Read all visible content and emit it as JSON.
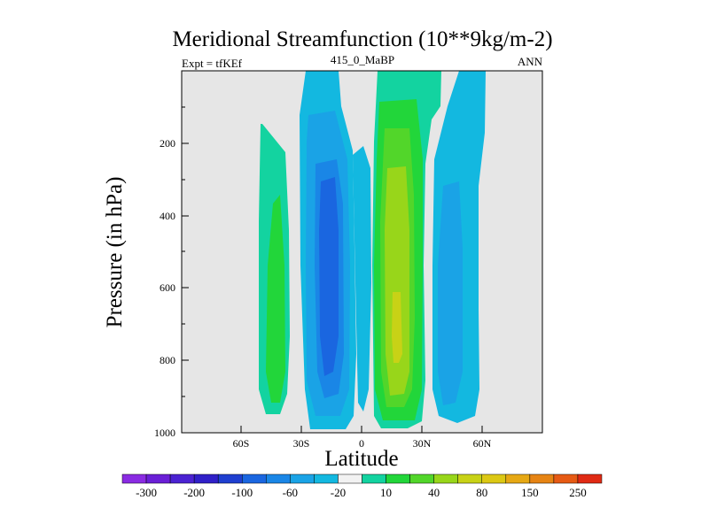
{
  "chart_data": {
    "type": "contour",
    "title": "Meridional Streamfunction (10**9kg/m-2)",
    "subtitle_left": "Expt = tfKEf",
    "subtitle_center": "415_0_MaBP",
    "subtitle_right": "ANN",
    "xlabel": "Latitude",
    "ylabel": "Pressure (in hPa)",
    "x_ticks": [
      "60S",
      "30S",
      "0",
      "30N",
      "60N"
    ],
    "y_ticks": [
      "200",
      "400",
      "600",
      "800",
      "1000"
    ],
    "background_color": "#e6e6e6",
    "colorbar": {
      "colors": [
        "#8a2be2",
        "#6a1fd6",
        "#4b22d2",
        "#3020c8",
        "#1f3fd0",
        "#1a66e0",
        "#1a86e6",
        "#1aa3e6",
        "#13b8e0",
        "#f2f2f2",
        "#13d3a0",
        "#22d63a",
        "#52d62a",
        "#98d61a",
        "#c8d216",
        "#dcc814",
        "#e6a814",
        "#e68414",
        "#e65a14",
        "#e02a14"
      ],
      "labels": [
        "-300",
        "-200",
        "-100",
        "-60",
        "-20",
        "10",
        "40",
        "80",
        "150",
        "250"
      ]
    },
    "note": "Pressure-latitude contour of annual-mean meridional streamfunction; negative cells near 20S and 45N, positive cells near 45S and 15N."
  }
}
